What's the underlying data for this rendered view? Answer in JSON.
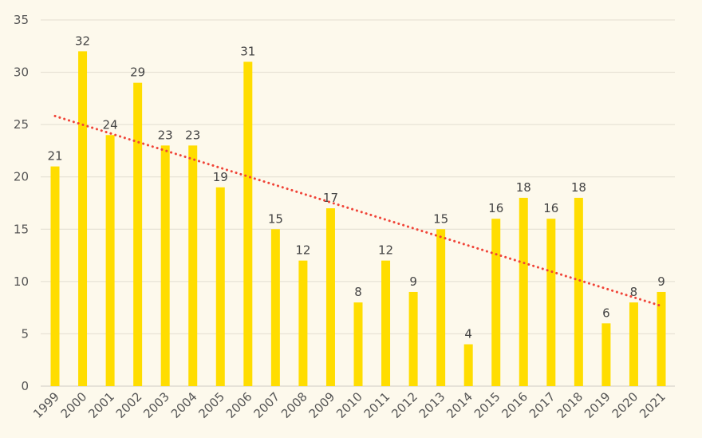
{
  "chart_data": {
    "type": "bar",
    "title": "",
    "xlabel": "",
    "ylabel": "",
    "categories": [
      "1999",
      "2000",
      "2001",
      "2002",
      "2003",
      "2004",
      "2005",
      "2006",
      "2007",
      "2008",
      "2009",
      "2010",
      "2011",
      "2012",
      "2013",
      "2014",
      "2015",
      "2016",
      "2017",
      "2018",
      "2019",
      "2020",
      "2021"
    ],
    "values": [
      21,
      32,
      24,
      29,
      23,
      23,
      19,
      31,
      15,
      12,
      17,
      8,
      12,
      9,
      15,
      4,
      16,
      18,
      16,
      18,
      6,
      8,
      9
    ],
    "ylim": [
      0,
      35
    ],
    "yticks": [
      0,
      5,
      10,
      15,
      20,
      25,
      30,
      35
    ],
    "grid": true,
    "data_labels": true,
    "trendline": {
      "type": "linear",
      "style": "dotted"
    },
    "colors": {
      "bar": "#ffdd00",
      "trendline": "#f04438",
      "background": "#fdf9ec",
      "grid": "#e2ddd0"
    }
  }
}
